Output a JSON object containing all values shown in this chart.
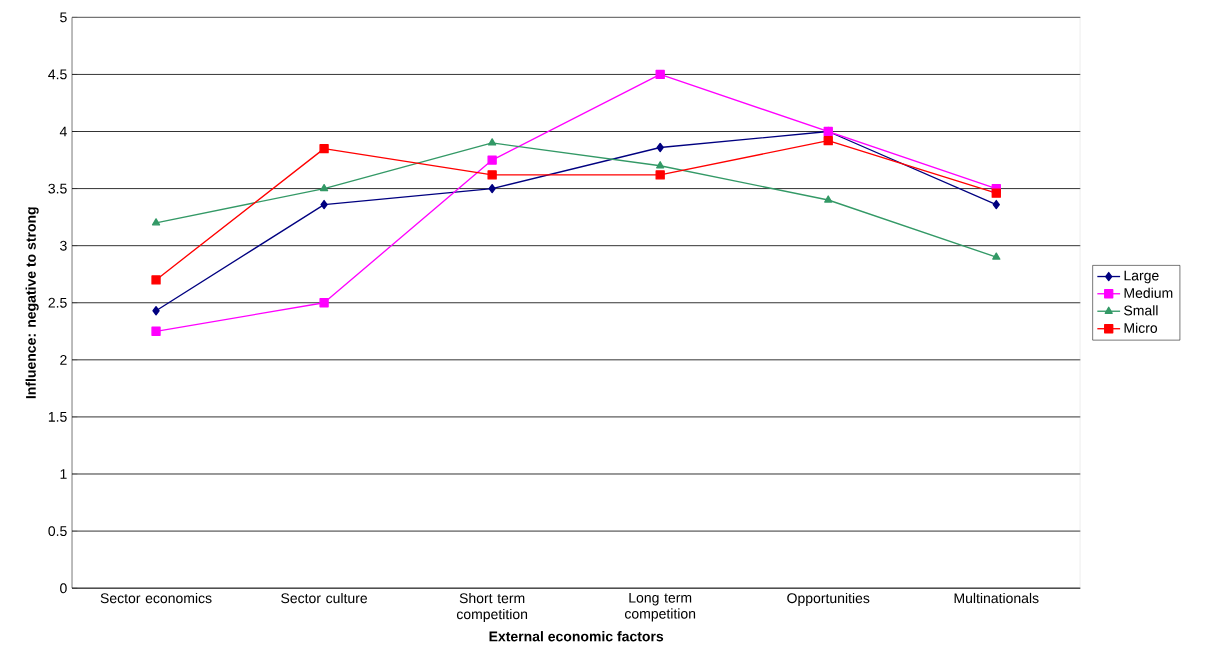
{
  "chart_data": {
    "type": "line",
    "xlabel": "External economic factors",
    "ylabel": "Influence: negative to strong",
    "categories": [
      "Sector economics",
      "Sector culture",
      "Short term competition",
      "Long term competition",
      "Opportunities",
      "Multinationals"
    ],
    "series": [
      {
        "name": "Large",
        "color": "#000080",
        "marker": "diamond",
        "values": [
          2.43,
          3.36,
          3.5,
          3.86,
          4.0,
          3.36
        ]
      },
      {
        "name": "Medium",
        "color": "#ff00ff",
        "marker": "square",
        "values": [
          2.25,
          2.5,
          3.75,
          4.5,
          4.0,
          3.5
        ]
      },
      {
        "name": "Small",
        "color": "#339966",
        "marker": "triangle",
        "values": [
          3.2,
          3.5,
          3.9,
          3.7,
          3.4,
          2.9
        ]
      },
      {
        "name": "Micro",
        "color": "#ff0000",
        "marker": "square",
        "values": [
          2.7,
          3.85,
          3.62,
          3.62,
          3.92,
          3.46
        ]
      }
    ],
    "ylim": [
      0,
      5
    ],
    "yticks": [
      0,
      0.5,
      1,
      1.5,
      2,
      2.5,
      3,
      3.5,
      4,
      4.5,
      5
    ],
    "grid": "y",
    "legend": "right",
    "line_style": "solid"
  }
}
